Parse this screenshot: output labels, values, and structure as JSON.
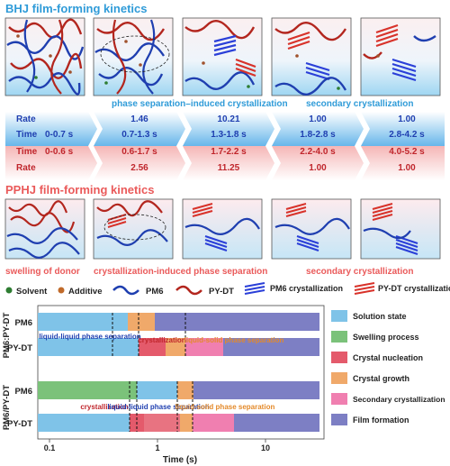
{
  "bhj": {
    "title": "BHJ film-forming kinetics",
    "caption_phase_sep_cryst": "phase separation–induced crystallization",
    "caption_secondary": "secondary crystallization",
    "row_rate_label": "Rate",
    "row_time_label_top": "Time",
    "row_time_label_bottom": "Time",
    "row_rate_label_bottom": "Rate",
    "time_top_first": "0-0.7 s",
    "time_bottom_first": "0-0.6 s",
    "rate_top": [
      "1.46",
      "10.21",
      "1.00",
      "1.00"
    ],
    "time_top": [
      "0.7-1.3 s",
      "1.3-1.8 s",
      "1.8-2.8 s",
      "2.8-4.2 s"
    ],
    "time_bottom": [
      "0.6-1.7 s",
      "1.7-2.2 s",
      "2.2-4.0 s",
      "4.0-5.2 s"
    ],
    "rate_bottom_first": "2.56",
    "rate_bottom": [
      "11.25",
      "1.00",
      "1.00"
    ]
  },
  "pphj": {
    "title": "PPHJ film-forming kinetics",
    "caption_swelling": "swelling of donor",
    "caption_cryst_phase": "crystallization-induced phase separation",
    "caption_secondary": "secondary crystallization"
  },
  "legend": {
    "solvent": "Solvent",
    "additive": "Additive",
    "pm6": "PM6",
    "pydt": "PY-DT",
    "pm6_cryst": "PM6 crystallization",
    "pydt_cryst": "PY-DT crystallization"
  },
  "timeline": {
    "group_top_label": "PM6:PY-DT",
    "group_bottom_label": "PM6/PY-DT",
    "row_labels": [
      "PM6",
      "PY-DT",
      "PM6",
      "PY-DT"
    ],
    "annot_llps_top": "liquid-liquid phase separation",
    "annot_cryst_top": "crystallization",
    "annot_lsps_top": "liquid-solid phase separation",
    "annot_cryst_bottom": "crystallization",
    "annot_llps_bottom": "liquid-liquid phase separation",
    "annot_lsps_bottom": "liquid-solid phase separation",
    "x_ticks": [
      "0.1",
      "1",
      "10"
    ],
    "x_label": "Time (s)",
    "legend": [
      "Solution state",
      "Swelling process",
      "Crystal nucleation",
      "Crystal growth",
      "Secondary crystallization",
      "Film formation"
    ]
  },
  "colors": {
    "solution": "#7fc3e8",
    "swelling": "#7bc27a",
    "nucleation": "#e45a6b",
    "growth": "#f0a96a",
    "secondary": "#f07fb0",
    "film": "#7d7fc4",
    "bhj_title": "#2f9bd8",
    "pphj_title": "#ea5a5a"
  }
}
